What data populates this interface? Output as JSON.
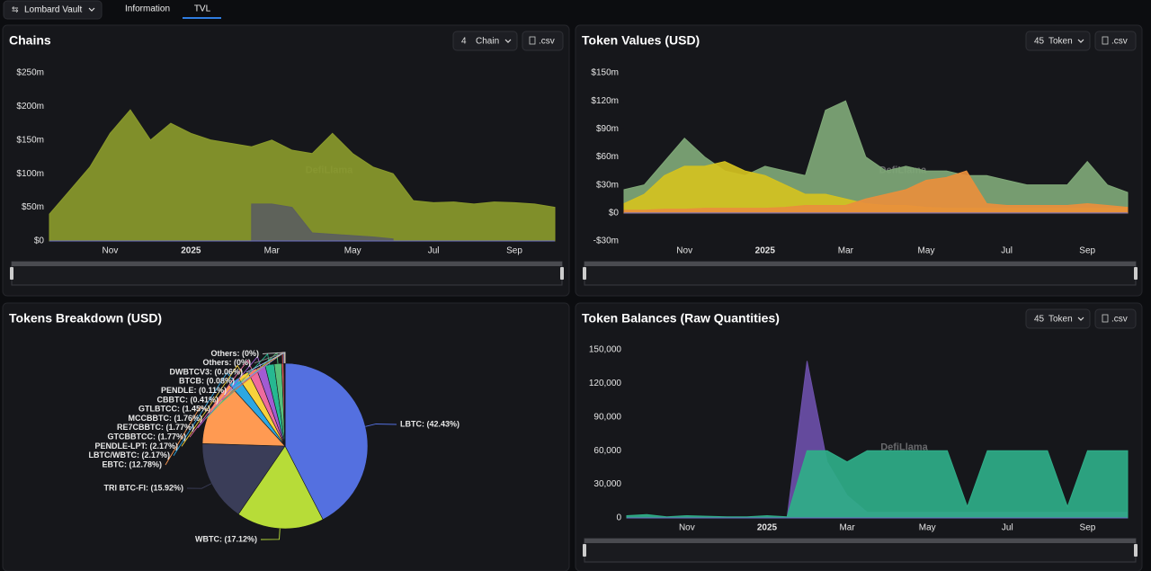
{
  "header": {
    "vault": "Lombard Vault",
    "tabs": [
      "Information",
      "TVL"
    ]
  },
  "chart_data": [
    {
      "type": "area",
      "title": "Chains",
      "controls": {
        "count": 4,
        "label": "Chain",
        "export": ".csv"
      },
      "watermark": "DefiLlama",
      "categories": [
        null,
        null,
        null,
        "Nov",
        null,
        null,
        null,
        "2025",
        null,
        null,
        null,
        "Mar",
        null,
        null,
        null,
        "May",
        null,
        null,
        null,
        "Jul",
        null,
        null,
        null,
        "Sep",
        null,
        null
      ],
      "series": [
        {
          "color": "#8a9a2b",
          "values": [
            40,
            75,
            110,
            160,
            195,
            150,
            175,
            160,
            150,
            145,
            140,
            150,
            135,
            130,
            160,
            130,
            110,
            100,
            60,
            57,
            58,
            55,
            58,
            57,
            55,
            50
          ]
        },
        {
          "color": "#5b5e5e",
          "values": [
            null,
            null,
            null,
            null,
            null,
            null,
            null,
            null,
            null,
            null,
            55,
            55,
            50,
            12,
            10,
            8,
            6,
            3,
            null,
            null,
            null,
            null,
            null,
            null,
            null,
            null
          ]
        }
      ],
      "ylim": [
        0,
        250
      ],
      "yticks": [
        {
          "value": 0,
          "label": "$0"
        },
        {
          "value": 50,
          "label": "$50m"
        },
        {
          "value": 100,
          "label": "$100m"
        },
        {
          "value": 150,
          "label": "$150m"
        },
        {
          "value": 200,
          "label": "$200m"
        },
        {
          "value": 250,
          "label": "$250m"
        }
      ]
    },
    {
      "type": "area",
      "title": "Token Values (USD)",
      "controls": {
        "count": 45,
        "label": "Token",
        "export": ".csv"
      },
      "watermark": "DefiLlama",
      "categories": [
        null,
        null,
        null,
        "Nov",
        null,
        null,
        null,
        "2025",
        null,
        null,
        null,
        "Mar",
        null,
        null,
        null,
        "May",
        null,
        null,
        null,
        "Jul",
        null,
        null,
        null,
        "Sep",
        null,
        null
      ],
      "series": [
        {
          "color": "#7fa877",
          "values": [
            25,
            30,
            55,
            80,
            60,
            45,
            40,
            50,
            45,
            40,
            110,
            120,
            60,
            45,
            50,
            45,
            45,
            40,
            40,
            35,
            30,
            30,
            30,
            55,
            30,
            22
          ]
        },
        {
          "color": "#d4c21f",
          "values": [
            10,
            20,
            40,
            50,
            50,
            55,
            45,
            40,
            30,
            20,
            20,
            15,
            10,
            8,
            8,
            6,
            5,
            5,
            5,
            5,
            5,
            5,
            5,
            5,
            5,
            5
          ]
        },
        {
          "color": "#e98f3c",
          "values": [
            3,
            3,
            4,
            4,
            5,
            5,
            5,
            5,
            6,
            8,
            8,
            8,
            15,
            20,
            25,
            35,
            38,
            45,
            10,
            8,
            8,
            8,
            8,
            10,
            8,
            6
          ]
        }
      ],
      "ylim": [
        -30,
        150
      ],
      "yticks": [
        {
          "value": -30,
          "label": "-$30m"
        },
        {
          "value": 0,
          "label": "$0"
        },
        {
          "value": 30,
          "label": "$30m"
        },
        {
          "value": 60,
          "label": "$60m"
        },
        {
          "value": 90,
          "label": "$90m"
        },
        {
          "value": 120,
          "label": "$120m"
        },
        {
          "value": 150,
          "label": "$150m"
        }
      ]
    },
    {
      "type": "pie",
      "title": "Tokens Breakdown (USD)",
      "watermark": "DefiLlama",
      "labels": [
        "LBTC: (42.43%)",
        "WBTC: (17.12%)",
        "TRI BTC-FI: (15.92%)",
        "EBTC: (12.78%)",
        "LBTC/WBTC: (2.17%)",
        "PENDLE-LPT: (2.17%)",
        "GTCBBTCC: (1.77%)",
        "RE7CBBTC: (1.77%)",
        "MCCBBTC: (1.76%)",
        "GTLBTCC: (1.45%)",
        "CBBTC: (0.41%)",
        "PENDLE: (0.11%)",
        "BTCB: (0.08%)",
        "DWBTCV3: (0.06%)",
        "Others: (0%)",
        "Others: (0%)"
      ],
      "values": [
        42.43,
        17.12,
        15.92,
        12.78,
        2.17,
        2.17,
        1.77,
        1.77,
        1.76,
        1.45,
        0.41,
        0.11,
        0.08,
        0.06,
        0,
        0
      ],
      "colors": [
        "#5470e0",
        "#b7dc38",
        "#3a3d58",
        "#ff9a52",
        "#2da7e2",
        "#f7d23c",
        "#ee6b9e",
        "#a25bd3",
        "#26b891",
        "#56c07b",
        "#e05a5a",
        "#7b8cf0",
        "#f0a030",
        "#9fd0ff",
        "#888888",
        "#cccccc"
      ]
    },
    {
      "type": "area",
      "title": "Token Balances (Raw Quantities)",
      "controls": {
        "count": 45,
        "label": "Token",
        "export": ".csv"
      },
      "watermark": "DefiLlama",
      "categories": [
        null,
        null,
        null,
        "Nov",
        null,
        null,
        null,
        "2025",
        null,
        null,
        null,
        "Mar",
        null,
        null,
        null,
        "May",
        null,
        null,
        null,
        "Jul",
        null,
        null,
        null,
        "Sep",
        null,
        null
      ],
      "series": [
        {
          "color": "#6b4fa8",
          "values": [
            null,
            null,
            null,
            null,
            null,
            null,
            null,
            null,
            0,
            140000,
            50000,
            20000,
            5000,
            5000,
            5000,
            5000,
            5000,
            5000,
            5000,
            5000,
            5000,
            5000,
            5000,
            5000,
            5000,
            5000
          ]
        },
        {
          "color": "#2fae88",
          "values": [
            2000,
            3000,
            1000,
            2000,
            1500,
            1000,
            1000,
            2000,
            1000,
            60000,
            60000,
            50000,
            60000,
            60000,
            60000,
            60000,
            60000,
            10000,
            60000,
            60000,
            60000,
            60000,
            10000,
            60000,
            60000,
            60000
          ]
        }
      ],
      "ylim": [
        0,
        150000
      ],
      "yticks": [
        0,
        {
          "value": 30000,
          "label": "30,000"
        },
        {
          "value": 60000,
          "label": "60,000"
        },
        {
          "value": 90000,
          "label": "90,000"
        },
        {
          "value": 120000,
          "label": "120,000"
        },
        {
          "value": 150000,
          "label": "150,000"
        }
      ]
    }
  ]
}
